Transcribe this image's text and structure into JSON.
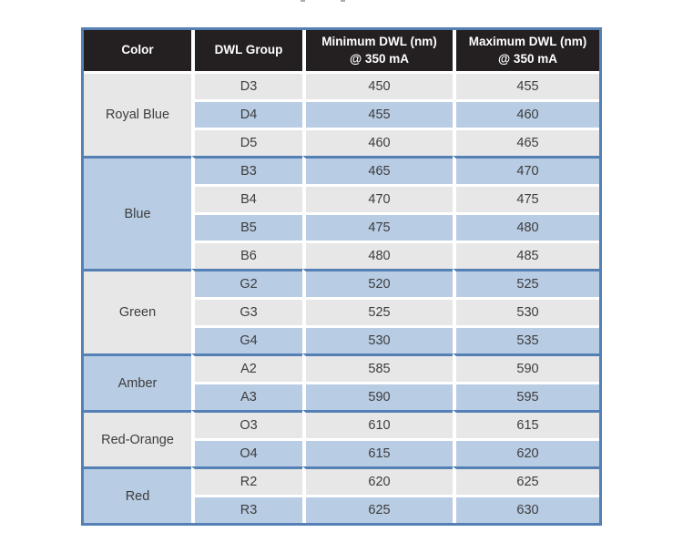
{
  "table": {
    "headers": [
      "Color",
      "DWL Group",
      "Minimum DWL (nm)\n@ 350 mA",
      "Maximum DWL (nm)\n@ 350 mA"
    ],
    "groups": [
      {
        "color": "Royal Blue",
        "rows": [
          {
            "dwl_group": "D3",
            "min": "450",
            "max": "455"
          },
          {
            "dwl_group": "D4",
            "min": "455",
            "max": "460"
          },
          {
            "dwl_group": "D5",
            "min": "460",
            "max": "465"
          }
        ]
      },
      {
        "color": "Blue",
        "rows": [
          {
            "dwl_group": "B3",
            "min": "465",
            "max": "470"
          },
          {
            "dwl_group": "B4",
            "min": "470",
            "max": "475"
          },
          {
            "dwl_group": "B5",
            "min": "475",
            "max": "480"
          },
          {
            "dwl_group": "B6",
            "min": "480",
            "max": "485"
          }
        ]
      },
      {
        "color": "Green",
        "rows": [
          {
            "dwl_group": "G2",
            "min": "520",
            "max": "525"
          },
          {
            "dwl_group": "G3",
            "min": "525",
            "max": "530"
          },
          {
            "dwl_group": "G4",
            "min": "530",
            "max": "535"
          }
        ]
      },
      {
        "color": "Amber",
        "rows": [
          {
            "dwl_group": "A2",
            "min": "585",
            "max": "590"
          },
          {
            "dwl_group": "A3",
            "min": "590",
            "max": "595"
          }
        ]
      },
      {
        "color": "Red-Orange",
        "rows": [
          {
            "dwl_group": "O3",
            "min": "610",
            "max": "615"
          },
          {
            "dwl_group": "O4",
            "min": "615",
            "max": "620"
          }
        ]
      },
      {
        "color": "Red",
        "rows": [
          {
            "dwl_group": "R2",
            "min": "620",
            "max": "625"
          },
          {
            "dwl_group": "R3",
            "min": "625",
            "max": "630"
          }
        ]
      }
    ],
    "colors": {
      "header_bg": "#242021",
      "header_text": "#ffffff",
      "row_blue": "#b8cce4",
      "row_gray": "#e7e7e7",
      "border_blue": "#5480b5",
      "body_text": "#3d3d3d",
      "page_bg": "#ffffff"
    }
  }
}
